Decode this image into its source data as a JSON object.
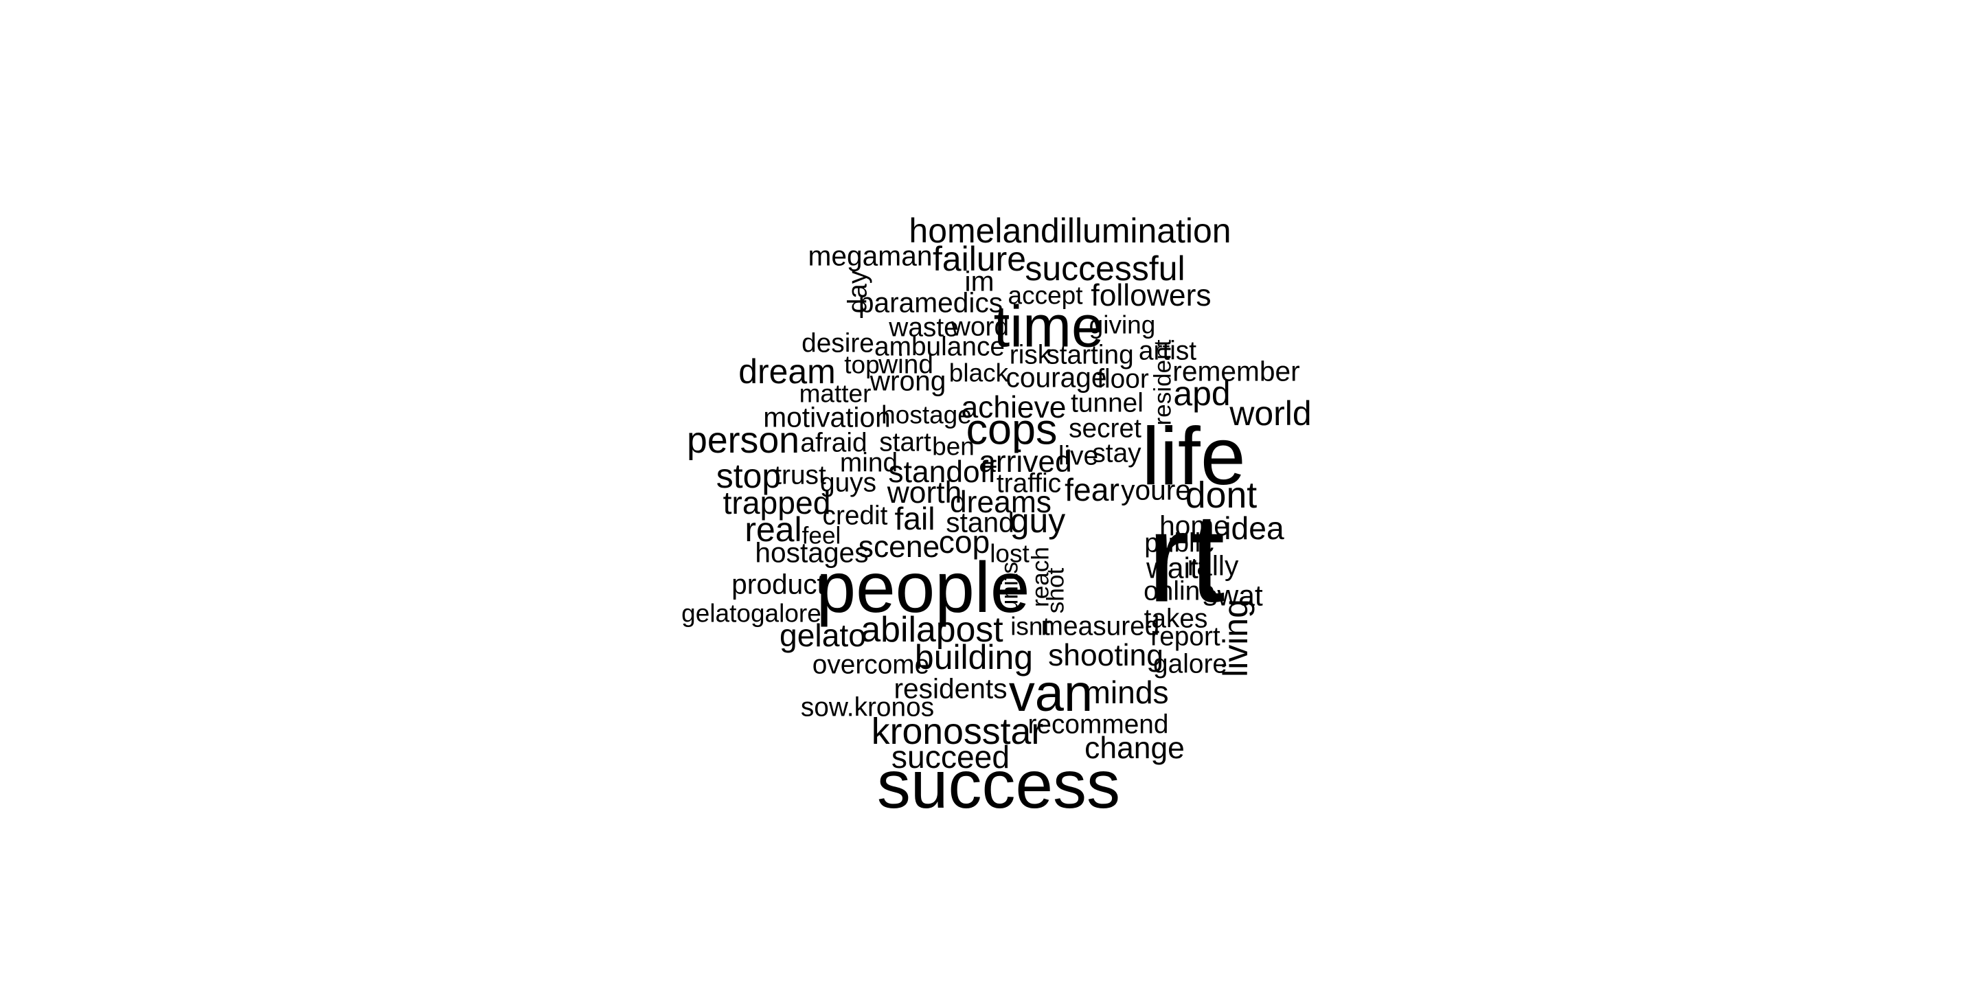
{
  "word_cloud": {
    "text_color": "#000000",
    "background_color": "#ffffff",
    "words": [
      {
        "text": "rt",
        "size": 100,
        "vertical": false
      },
      {
        "text": "life",
        "size": 64,
        "vertical": false
      },
      {
        "text": "people",
        "size": 56,
        "vertical": false
      },
      {
        "text": "success",
        "size": 53,
        "vertical": false
      },
      {
        "text": "time",
        "size": 46,
        "vertical": false
      },
      {
        "text": "van",
        "size": 41,
        "vertical": false
      },
      {
        "text": "cops",
        "size": 34,
        "vertical": false
      },
      {
        "text": "homelandillumination",
        "size": 27,
        "vertical": false
      },
      {
        "text": "abilapost",
        "size": 28,
        "vertical": false
      },
      {
        "text": "kronosstar",
        "size": 29,
        "vertical": false
      },
      {
        "text": "person",
        "size": 29,
        "vertical": false
      },
      {
        "text": "dont",
        "size": 29,
        "vertical": false
      },
      {
        "text": "successful",
        "size": 27,
        "vertical": false
      },
      {
        "text": "failure",
        "size": 27,
        "vertical": false
      },
      {
        "text": "world",
        "size": 27,
        "vertical": false
      },
      {
        "text": "building",
        "size": 27,
        "vertical": false
      },
      {
        "text": "apd",
        "size": 27,
        "vertical": false
      },
      {
        "text": "dream",
        "size": 27,
        "vertical": false
      },
      {
        "text": "stop",
        "size": 27,
        "vertical": false
      },
      {
        "text": "guy",
        "size": 27,
        "vertical": false
      },
      {
        "text": "real",
        "size": 27,
        "vertical": false
      },
      {
        "text": "living",
        "size": 27,
        "vertical": true
      },
      {
        "text": "succeed",
        "size": 25,
        "vertical": false
      },
      {
        "text": "fear",
        "size": 25,
        "vertical": false
      },
      {
        "text": "minds",
        "size": 25,
        "vertical": false
      },
      {
        "text": "change",
        "size": 24,
        "vertical": false
      },
      {
        "text": "shooting",
        "size": 24,
        "vertical": false
      },
      {
        "text": "scene",
        "size": 24,
        "vertical": false
      },
      {
        "text": "fail",
        "size": 25,
        "vertical": false
      },
      {
        "text": "cop",
        "size": 25,
        "vertical": false
      },
      {
        "text": "trapped",
        "size": 25,
        "vertical": false
      },
      {
        "text": "gelato",
        "size": 25,
        "vertical": false
      },
      {
        "text": "idea",
        "size": 25,
        "vertical": false
      },
      {
        "text": "followers",
        "size": 24,
        "vertical": false
      },
      {
        "text": "achieve",
        "size": 24,
        "vertical": false
      },
      {
        "text": "dreams",
        "size": 24,
        "vertical": false
      },
      {
        "text": "standoff",
        "size": 24,
        "vertical": false
      },
      {
        "text": "arrived",
        "size": 24,
        "vertical": false
      },
      {
        "text": "worth",
        "size": 24,
        "vertical": false
      },
      {
        "text": "residents",
        "size": 22,
        "vertical": false
      },
      {
        "text": "hostages",
        "size": 22,
        "vertical": false
      },
      {
        "text": "swat",
        "size": 23,
        "vertical": false
      },
      {
        "text": "home",
        "size": 22,
        "vertical": false
      },
      {
        "text": "youre",
        "size": 22,
        "vertical": false
      },
      {
        "text": "megaman",
        "size": 22,
        "vertical": false
      },
      {
        "text": "paramedics",
        "size": 22,
        "vertical": false
      },
      {
        "text": "wrong",
        "size": 22,
        "vertical": false
      },
      {
        "text": "motivation",
        "size": 22,
        "vertical": false
      },
      {
        "text": "courage",
        "size": 22,
        "vertical": false
      },
      {
        "text": "remember",
        "size": 22,
        "vertical": false
      },
      {
        "text": "stand",
        "size": 22,
        "vertical": false
      },
      {
        "text": "recommend",
        "size": 21,
        "vertical": false
      },
      {
        "text": "overcome",
        "size": 21,
        "vertical": false
      },
      {
        "text": "product",
        "size": 22,
        "vertical": false
      },
      {
        "text": "measured",
        "size": 21,
        "vertical": false
      },
      {
        "text": "wait",
        "size": 23,
        "vertical": false
      },
      {
        "text": "rally",
        "size": 22,
        "vertical": false
      },
      {
        "text": "report",
        "size": 21,
        "vertical": false
      },
      {
        "text": "takes",
        "size": 21,
        "vertical": false
      },
      {
        "text": "online",
        "size": 21,
        "vertical": false
      },
      {
        "text": "public",
        "size": 21,
        "vertical": false
      },
      {
        "text": "galore",
        "size": 21,
        "vertical": false
      },
      {
        "text": "sow.kronos",
        "size": 21,
        "vertical": false
      },
      {
        "text": "gelatogalore",
        "size": 20,
        "vertical": false
      },
      {
        "text": "credit",
        "size": 21,
        "vertical": false
      },
      {
        "text": "traffic",
        "size": 21,
        "vertical": false
      },
      {
        "text": "trust",
        "size": 21,
        "vertical": false
      },
      {
        "text": "guys",
        "size": 21,
        "vertical": false
      },
      {
        "text": "mind",
        "size": 21,
        "vertical": false
      },
      {
        "text": "afraid",
        "size": 21,
        "vertical": false
      },
      {
        "text": "start",
        "size": 21,
        "vertical": false
      },
      {
        "text": "ben",
        "size": 20,
        "vertical": false
      },
      {
        "text": "live",
        "size": 21,
        "vertical": false
      },
      {
        "text": "stay",
        "size": 21,
        "vertical": false
      },
      {
        "text": "secret",
        "size": 21,
        "vertical": false
      },
      {
        "text": "tunnel",
        "size": 21,
        "vertical": false
      },
      {
        "text": "floor",
        "size": 21,
        "vertical": false
      },
      {
        "text": "black",
        "size": 20,
        "vertical": false
      },
      {
        "text": "hostage",
        "size": 20,
        "vertical": false
      },
      {
        "text": "matter",
        "size": 20,
        "vertical": false
      },
      {
        "text": "top",
        "size": 20,
        "vertical": false
      },
      {
        "text": "wind",
        "size": 21,
        "vertical": false
      },
      {
        "text": "desire",
        "size": 21,
        "vertical": false
      },
      {
        "text": "ambulance",
        "size": 21,
        "vertical": false
      },
      {
        "text": "waste",
        "size": 21,
        "vertical": false
      },
      {
        "text": "word",
        "size": 21,
        "vertical": false
      },
      {
        "text": "risk",
        "size": 21,
        "vertical": false
      },
      {
        "text": "starting",
        "size": 21,
        "vertical": false
      },
      {
        "text": "artist",
        "size": 21,
        "vertical": false
      },
      {
        "text": "giving",
        "size": 20,
        "vertical": false
      },
      {
        "text": "accept",
        "size": 20,
        "vertical": false
      },
      {
        "text": "im",
        "size": 22,
        "vertical": false
      },
      {
        "text": "lost",
        "size": 20,
        "vertical": false
      },
      {
        "text": "feel",
        "size": 19,
        "vertical": false
      },
      {
        "text": "isnt",
        "size": 20,
        "vertical": false
      },
      {
        "text": "day",
        "size": 21,
        "vertical": true
      },
      {
        "text": "resident",
        "size": 19,
        "vertical": true
      },
      {
        "text": "units",
        "size": 19,
        "vertical": true
      },
      {
        "text": "reach",
        "size": 19,
        "vertical": true
      },
      {
        "text": "shot",
        "size": 19,
        "vertical": true
      }
    ]
  }
}
